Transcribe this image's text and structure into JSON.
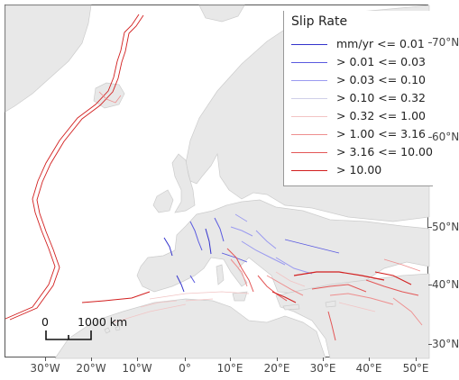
{
  "legend": {
    "title": "Slip Rate",
    "items": [
      {
        "label": "mm/yr <= 0.01",
        "color": "#3333cc"
      },
      {
        "label": "> 0.01 <= 0.03",
        "color": "#5a5ae0"
      },
      {
        "label": "> 0.03 <= 0.10",
        "color": "#9a9af0"
      },
      {
        "label": "> 0.10 <= 0.32",
        "color": "#cfcfe8"
      },
      {
        "label": "> 0.32 <= 1.00",
        "color": "#f2c4c4"
      },
      {
        "label": "> 1.00 <= 3.16",
        "color": "#ee8e8e"
      },
      {
        "label": "> 3.16 <= 10.00",
        "color": "#e35656"
      },
      {
        "label": "> 10.00",
        "color": "#d21f1f"
      }
    ]
  },
  "longitude_labels": [
    "30°W",
    "20°W",
    "10°W",
    "0°",
    "10°E",
    "20°E",
    "30°E",
    "40°E",
    "50°E"
  ],
  "latitude_labels": [
    "70°N",
    "60°N",
    "50°N",
    "40°N",
    "30°N"
  ],
  "scale_bar": {
    "start_label": "0",
    "end_label": "1000 km"
  },
  "colors": {
    "land": "#e8e8e8",
    "land_border": "#cccccc",
    "ocean": "#ffffff"
  }
}
